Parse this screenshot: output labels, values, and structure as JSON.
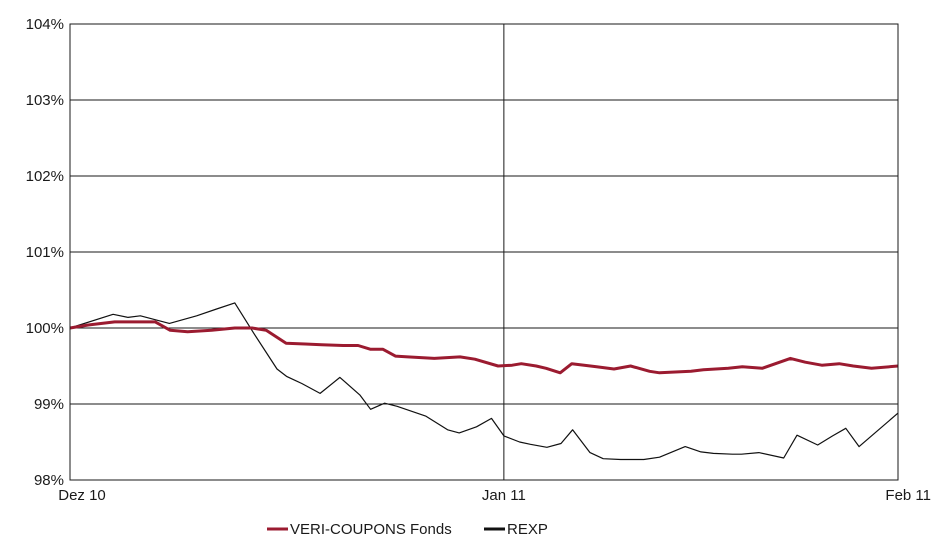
{
  "chart_data": {
    "type": "line",
    "title": "",
    "xlabel": "",
    "ylabel": "",
    "x_ticks": [
      "Dez 10",
      "Jan 11",
      "Feb 11"
    ],
    "y_ticks": [
      "98%",
      "99%",
      "100%",
      "101%",
      "102%",
      "103%",
      "104%"
    ],
    "y_tick_values": [
      98,
      99,
      100,
      101,
      102,
      103,
      104
    ],
    "ylim": [
      98,
      104
    ],
    "x_range": [
      "Dez 10",
      "Feb 11"
    ],
    "grid": "horizontal lines at each y tick; vertical line at Jan 11",
    "legend_position": "bottom",
    "x_unit_note": "x = fraction of span from Dez 10 (0) to Feb 11 (1); Jan 11 at 0.524",
    "series": [
      {
        "name": "VERI-COUPONS Fonds",
        "color": "#9b1b30",
        "x": [
          0,
          0.022,
          0.054,
          0.085,
          0.103,
          0.121,
          0.142,
          0.171,
          0.199,
          0.22,
          0.237,
          0.261,
          0.284,
          0.304,
          0.33,
          0.348,
          0.363,
          0.378,
          0.393,
          0.408,
          0.44,
          0.471,
          0.489,
          0.517,
          0.534,
          0.545,
          0.563,
          0.575,
          0.592,
          0.606,
          0.636,
          0.657,
          0.677,
          0.7,
          0.712,
          0.75,
          0.765,
          0.795,
          0.812,
          0.836,
          0.87,
          0.888,
          0.908,
          0.929,
          0.946,
          0.968,
          1.0
        ],
        "values": [
          100.0,
          100.04,
          100.08,
          100.08,
          100.08,
          99.97,
          99.95,
          99.97,
          100.0,
          100.0,
          99.97,
          99.8,
          99.79,
          99.78,
          99.77,
          99.77,
          99.72,
          99.72,
          99.63,
          99.62,
          99.6,
          99.62,
          99.59,
          99.5,
          99.51,
          99.53,
          99.5,
          99.47,
          99.41,
          99.53,
          99.49,
          99.46,
          99.5,
          99.43,
          99.41,
          99.43,
          99.45,
          99.47,
          99.49,
          99.47,
          99.6,
          99.55,
          99.51,
          99.53,
          99.5,
          99.47,
          99.5
        ]
      },
      {
        "name": "REXP",
        "color": "#111111",
        "x": [
          0,
          0.052,
          0.07,
          0.085,
          0.12,
          0.153,
          0.177,
          0.199,
          0.222,
          0.25,
          0.262,
          0.28,
          0.302,
          0.326,
          0.35,
          0.363,
          0.38,
          0.395,
          0.43,
          0.456,
          0.47,
          0.491,
          0.509,
          0.524,
          0.543,
          0.556,
          0.576,
          0.593,
          0.607,
          0.628,
          0.644,
          0.665,
          0.693,
          0.712,
          0.743,
          0.762,
          0.777,
          0.8,
          0.811,
          0.832,
          0.862,
          0.878,
          0.903,
          0.921,
          0.937,
          0.953,
          1.0
        ],
        "values": [
          100.0,
          100.18,
          100.14,
          100.16,
          100.06,
          100.16,
          100.25,
          100.33,
          99.93,
          99.46,
          99.36,
          99.27,
          99.14,
          99.35,
          99.12,
          98.93,
          99.01,
          98.97,
          98.84,
          98.66,
          98.62,
          98.7,
          98.81,
          98.58,
          98.5,
          98.47,
          98.43,
          98.48,
          98.66,
          98.36,
          98.28,
          98.27,
          98.27,
          98.3,
          98.44,
          98.37,
          98.35,
          98.34,
          98.34,
          98.36,
          98.29,
          98.59,
          98.46,
          98.58,
          98.68,
          98.44,
          98.88
        ]
      }
    ]
  }
}
